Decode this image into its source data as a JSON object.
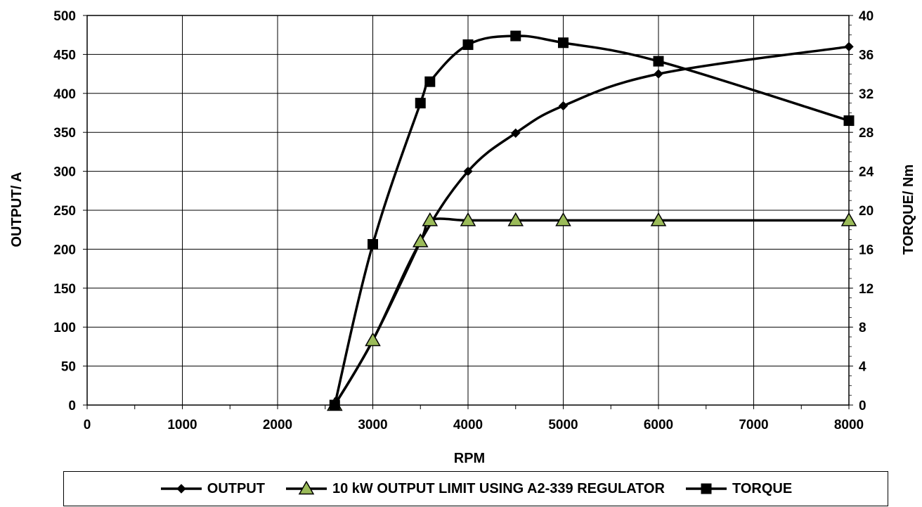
{
  "chart_data": {
    "type": "line",
    "xlabel": "RPM",
    "ylabel": "OUTPUT/ A",
    "y2label": "TORQUE/ Nm",
    "xlim": [
      0,
      8000
    ],
    "ylim": [
      0,
      500
    ],
    "y2lim": [
      0,
      40
    ],
    "x_ticks": [
      0,
      1000,
      2000,
      3000,
      4000,
      5000,
      6000,
      7000,
      8000
    ],
    "y_ticks": [
      0,
      50,
      100,
      150,
      200,
      250,
      300,
      350,
      400,
      450,
      500
    ],
    "y2_ticks": [
      0,
      4,
      8,
      12,
      16,
      20,
      24,
      28,
      32,
      36,
      40
    ],
    "grid": true,
    "legend_position": "bottom",
    "series": [
      {
        "name": "OUTPUT",
        "axis": "left",
        "marker": "diamond",
        "color": "#000000",
        "x": [
          2600,
          3000,
          3500,
          4000,
          4500,
          5000,
          6000,
          8000
        ],
        "y": [
          0,
          83,
          210,
          300,
          349,
          384,
          425,
          460
        ]
      },
      {
        "name": "10 kW OUTPUT LIMIT USING A2-339 REGULATOR",
        "axis": "left",
        "marker": "triangle",
        "color": "#000000",
        "marker_fill": "#9bbb59",
        "x": [
          2600,
          3000,
          3500,
          3600,
          4000,
          4500,
          5000,
          6000,
          8000
        ],
        "y": [
          0,
          83,
          210,
          237,
          237,
          237,
          237,
          237,
          237
        ]
      },
      {
        "name": "TORQUE",
        "axis": "right",
        "marker": "square",
        "color": "#000000",
        "x": [
          2600,
          3000,
          3500,
          3600,
          4000,
          4500,
          5000,
          6000,
          8000
        ],
        "y": [
          0,
          16.5,
          31,
          33.2,
          37,
          37.9,
          37.2,
          35.3,
          29.2
        ]
      }
    ]
  }
}
